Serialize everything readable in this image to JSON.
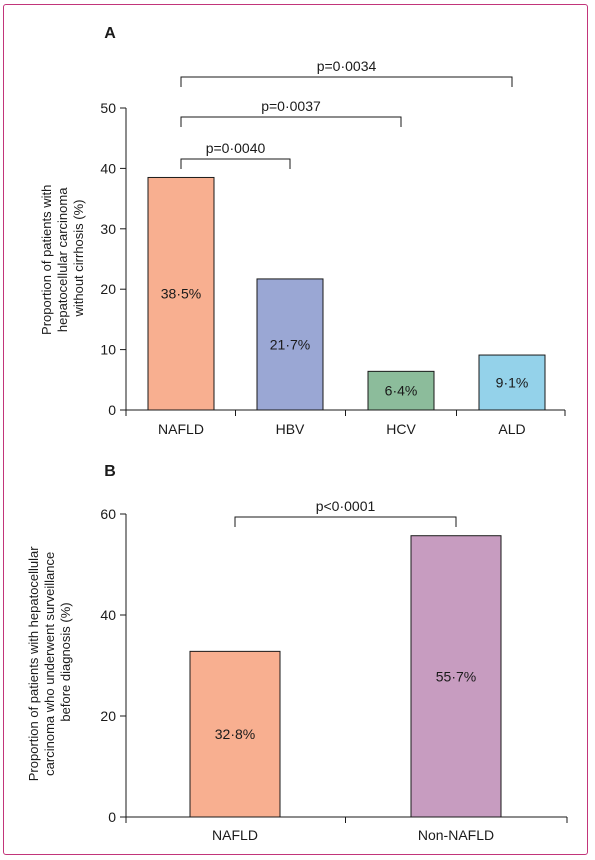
{
  "colors": {
    "frame": "#c2357a",
    "axis": "#1a1a1a"
  },
  "chart_data": [
    {
      "panel_label": "A",
      "type": "bar",
      "ylabel_lines": [
        "Proportion of patients with",
        "hepatocellular carcinoma",
        "without cirrhosis (%)"
      ],
      "ylim": [
        0,
        50
      ],
      "yticks": [
        0,
        10,
        20,
        30,
        40,
        50
      ],
      "categories": [
        "NAFLD",
        "HBV",
        "HCV",
        "ALD"
      ],
      "values": [
        38.5,
        21.7,
        6.4,
        9.1
      ],
      "value_labels": [
        "38·5%",
        "21·7%",
        "6·4%",
        "9·1%"
      ],
      "bar_colors": [
        "#f8af90",
        "#9aa7d4",
        "#8cbc9b",
        "#94d2ea"
      ],
      "comparisons": [
        {
          "from": 0,
          "to": 1,
          "label": "p=0·0040"
        },
        {
          "from": 0,
          "to": 2,
          "label": "p=0·0037"
        },
        {
          "from": 0,
          "to": 3,
          "label": "p=0·0034"
        }
      ]
    },
    {
      "panel_label": "B",
      "type": "bar",
      "ylabel_lines": [
        "Proportion of patients with hepatocellular",
        "carcinoma who underwent surveillance",
        "before diagnosis (%)"
      ],
      "ylim": [
        0,
        60
      ],
      "yticks": [
        0,
        20,
        40,
        60
      ],
      "categories": [
        "NAFLD",
        "Non-NAFLD"
      ],
      "values": [
        32.8,
        55.7
      ],
      "value_labels": [
        "32·8%",
        "55·7%"
      ],
      "bar_colors": [
        "#f8af90",
        "#c79cc0"
      ],
      "comparisons": [
        {
          "from": 0,
          "to": 1,
          "label": "p<0·0001"
        }
      ]
    }
  ]
}
